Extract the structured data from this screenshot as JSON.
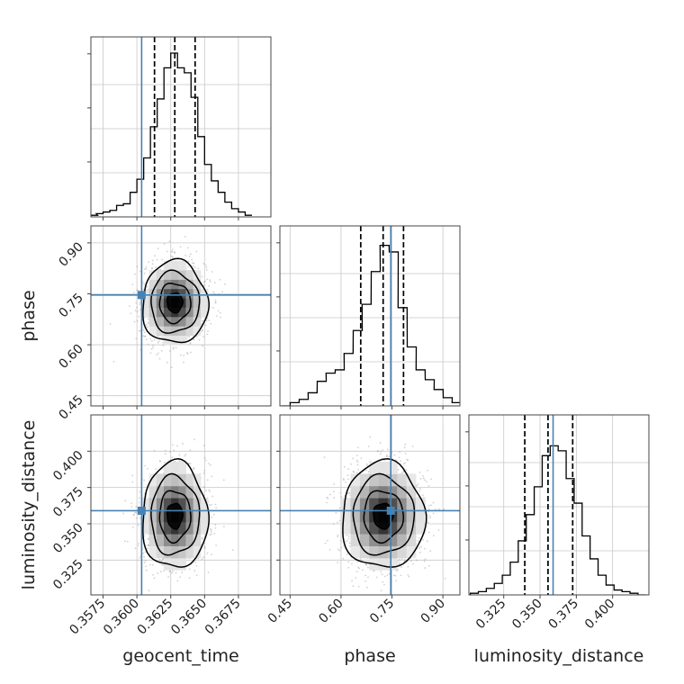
{
  "chart_data": {
    "type": "corner",
    "parameters": [
      "geocent_time",
      "phase",
      "luminosity_distance"
    ],
    "axis_labels": {
      "geocent_time": "geocent_time",
      "phase": "phase",
      "luminosity_distance": "luminosity_distance"
    },
    "ranges": {
      "geocent_time": [
        0.3566,
        0.3699
      ],
      "phase": [
        0.42,
        0.95
      ],
      "luminosity_distance": [
        0.301,
        0.425
      ]
    },
    "ticks": {
      "geocent_time": [
        "0.3575",
        "0.3600",
        "0.3625",
        "0.3650",
        "0.3675"
      ],
      "phase": [
        "0.45",
        "0.60",
        "0.75",
        "0.90"
      ],
      "luminosity_distance": [
        "0.325",
        "0.350",
        "0.375",
        "0.400"
      ]
    },
    "truths": {
      "geocent_time": 0.36035,
      "phase": 0.7465,
      "luminosity_distance": 0.359
    },
    "quantiles": {
      "geocent_time": [
        0.3613,
        0.3628,
        0.3643
      ],
      "phase": [
        0.658,
        0.724,
        0.784
      ],
      "luminosity_distance": [
        0.3395,
        0.3555,
        0.3725
      ]
    },
    "histograms": {
      "geocent_time": {
        "bin_width": 0.0005,
        "bins": [
          {
            "x": 0.3566,
            "h": 0.01
          },
          {
            "x": 0.357,
            "h": 0.02
          },
          {
            "x": 0.3575,
            "h": 0.03
          },
          {
            "x": 0.358,
            "h": 0.04
          },
          {
            "x": 0.3585,
            "h": 0.07
          },
          {
            "x": 0.359,
            "h": 0.08
          },
          {
            "x": 0.3595,
            "h": 0.15
          },
          {
            "x": 0.36,
            "h": 0.23
          },
          {
            "x": 0.3605,
            "h": 0.36
          },
          {
            "x": 0.361,
            "h": 0.55
          },
          {
            "x": 0.3615,
            "h": 0.72
          },
          {
            "x": 0.362,
            "h": 0.91
          },
          {
            "x": 0.3625,
            "h": 1.0
          },
          {
            "x": 0.363,
            "h": 0.91
          },
          {
            "x": 0.3635,
            "h": 0.88
          },
          {
            "x": 0.364,
            "h": 0.73
          },
          {
            "x": 0.3645,
            "h": 0.49
          },
          {
            "x": 0.365,
            "h": 0.32
          },
          {
            "x": 0.3655,
            "h": 0.22
          },
          {
            "x": 0.366,
            "h": 0.15
          },
          {
            "x": 0.3665,
            "h": 0.09
          },
          {
            "x": 0.367,
            "h": 0.05
          },
          {
            "x": 0.3675,
            "h": 0.03
          },
          {
            "x": 0.368,
            "h": 0.01
          }
        ]
      },
      "phase": {
        "bin_width": 0.0265,
        "bins": [
          {
            "x": 0.424,
            "h": 0.0
          },
          {
            "x": 0.45,
            "h": 0.02
          },
          {
            "x": 0.477,
            "h": 0.04
          },
          {
            "x": 0.503,
            "h": 0.08
          },
          {
            "x": 0.53,
            "h": 0.15
          },
          {
            "x": 0.556,
            "h": 0.2
          },
          {
            "x": 0.583,
            "h": 0.22
          },
          {
            "x": 0.609,
            "h": 0.32
          },
          {
            "x": 0.636,
            "h": 0.46
          },
          {
            "x": 0.662,
            "h": 0.62
          },
          {
            "x": 0.689,
            "h": 0.82
          },
          {
            "x": 0.715,
            "h": 0.98
          },
          {
            "x": 0.742,
            "h": 0.94
          },
          {
            "x": 0.768,
            "h": 0.6
          },
          {
            "x": 0.795,
            "h": 0.36
          },
          {
            "x": 0.821,
            "h": 0.22
          },
          {
            "x": 0.848,
            "h": 0.16
          },
          {
            "x": 0.874,
            "h": 0.1
          },
          {
            "x": 0.901,
            "h": 0.05
          },
          {
            "x": 0.927,
            "h": 0.02
          }
        ]
      },
      "luminosity_distance": {
        "bin_width": 0.0055,
        "bins": [
          {
            "x": 0.302,
            "h": 0.01
          },
          {
            "x": 0.3075,
            "h": 0.02
          },
          {
            "x": 0.313,
            "h": 0.04
          },
          {
            "x": 0.3185,
            "h": 0.07
          },
          {
            "x": 0.324,
            "h": 0.12
          },
          {
            "x": 0.3295,
            "h": 0.2
          },
          {
            "x": 0.335,
            "h": 0.33
          },
          {
            "x": 0.3405,
            "h": 0.49
          },
          {
            "x": 0.346,
            "h": 0.66
          },
          {
            "x": 0.3515,
            "h": 0.85
          },
          {
            "x": 0.357,
            "h": 0.91
          },
          {
            "x": 0.3625,
            "h": 0.88
          },
          {
            "x": 0.368,
            "h": 0.71
          },
          {
            "x": 0.3735,
            "h": 0.56
          },
          {
            "x": 0.379,
            "h": 0.36
          },
          {
            "x": 0.3845,
            "h": 0.22
          },
          {
            "x": 0.39,
            "h": 0.12
          },
          {
            "x": 0.3955,
            "h": 0.06
          },
          {
            "x": 0.401,
            "h": 0.03
          },
          {
            "x": 0.4065,
            "h": 0.02
          },
          {
            "x": 0.412,
            "h": 0.01
          },
          {
            "x": 0.4175,
            "h": 0.0
          }
        ]
      }
    },
    "joint": [
      {
        "x": "geocent_time",
        "y": "phase",
        "mean": [
          0.3628,
          0.724
        ],
        "sd": [
          0.00115,
          0.058
        ],
        "corr": 0.05
      },
      {
        "x": "geocent_time",
        "y": "luminosity_distance",
        "mean": [
          0.3628,
          0.3555
        ],
        "sd": [
          0.00115,
          0.0175
        ],
        "corr": 0.0
      },
      {
        "x": "phase",
        "y": "luminosity_distance",
        "mean": [
          0.724,
          0.3555
        ],
        "sd": [
          0.058,
          0.0175
        ],
        "corr": 0.05
      }
    ],
    "grid": true,
    "colors": {
      "truth": "#4682b4",
      "hist": "#000000",
      "contour": "#000000",
      "points": "#9a9a9a",
      "grid": "#c8c8c8"
    }
  }
}
